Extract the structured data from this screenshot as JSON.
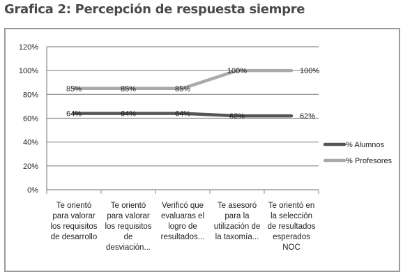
{
  "figure_title": "Grafica 2: Percepción de respuesta siempre",
  "chart_data": {
    "type": "line",
    "title": "",
    "xlabel": "",
    "ylabel": "",
    "ylim": [
      0,
      120
    ],
    "y_ticks": [
      "0%",
      "20%",
      "40%",
      "60%",
      "80%",
      "100%",
      "120%"
    ],
    "grid": true,
    "legend_position": "right",
    "categories": [
      [
        "Te orientó",
        "para valorar",
        "los requisitos",
        "de desarrollo"
      ],
      [
        "Te orientó",
        "para valorar",
        "los requisitos",
        "de",
        "desviación..."
      ],
      [
        "Verificó que",
        "evaluaras el",
        "logro de",
        "resultados..."
      ],
      [
        "Te asesoró",
        "para la",
        "utilización de",
        "la taxomía..."
      ],
      [
        "Te orientó en",
        "la selección",
        "de resultados",
        "esperados",
        "NOC"
      ]
    ],
    "series": [
      {
        "name": "% Alumnos",
        "values": [
          64,
          64,
          64,
          62,
          62
        ],
        "labels": [
          "64%",
          "64%",
          "64%",
          "62%",
          "62%"
        ],
        "color": "#555555"
      },
      {
        "name": "% Profesores",
        "values": [
          85,
          85,
          85,
          100,
          100
        ],
        "labels": [
          "85%",
          "85%",
          "85%",
          "100%",
          "100%"
        ],
        "color": "#aaaaaa"
      }
    ]
  }
}
